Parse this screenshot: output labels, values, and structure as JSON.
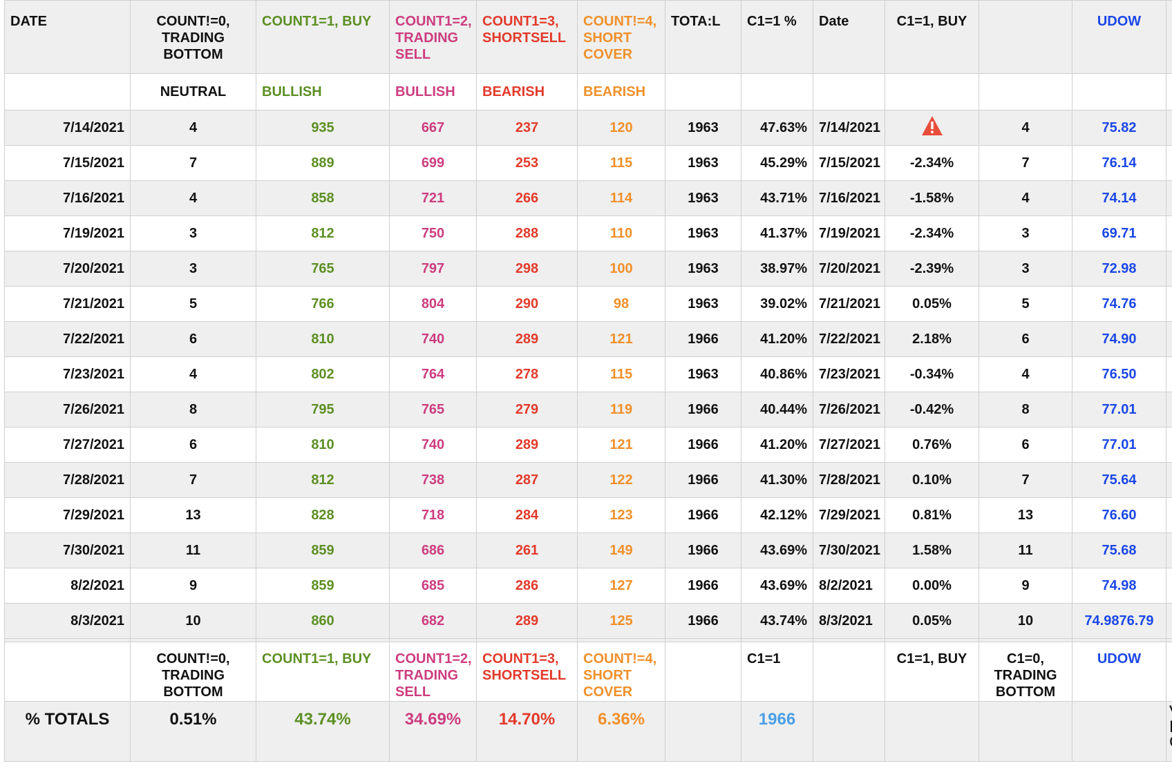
{
  "header": {
    "date": "DATE",
    "c0": "COUNT!=0, TRADING BOTTOM",
    "c1": "COUNT1=1, BUY",
    "c2": "COUNT1=2, TRADING SELL",
    "c3": "COUNT1=3, SHORTSELL",
    "c4": "COUNT!=4, SHORT COVER",
    "total": "TOTA:L",
    "pct": "C1=1 %",
    "date2": "Date",
    "buy": "C1=1, BUY",
    "blank": "",
    "udow": "UDOW"
  },
  "subheader": {
    "c0": "NEUTRAL",
    "c1": "BULLISH",
    "c2": "BULLISH",
    "c3": "BEARISH",
    "c4": "BEARISH"
  },
  "rows": [
    {
      "date": "7/14/2021",
      "c0": "4",
      "c1": "935",
      "c2": "667",
      "c3": "237",
      "c4": "120",
      "total": "1963",
      "pct": "47.63%",
      "date2": "7/14/2021",
      "buy": "",
      "c0b": "4",
      "udow": "75.82"
    },
    {
      "date": "7/15/2021",
      "c0": "7",
      "c1": "889",
      "c2": "699",
      "c3": "253",
      "c4": "115",
      "total": "1963",
      "pct": "45.29%",
      "date2": "7/15/2021",
      "buy": "-2.34%",
      "c0b": "7",
      "udow": "76.14"
    },
    {
      "date": "7/16/2021",
      "c0": "4",
      "c1": "858",
      "c2": "721",
      "c3": "266",
      "c4": "114",
      "total": "1963",
      "pct": "43.71%",
      "date2": "7/16/2021",
      "buy": "-1.58%",
      "c0b": "4",
      "udow": "74.14"
    },
    {
      "date": "7/19/2021",
      "c0": "3",
      "c1": "812",
      "c2": "750",
      "c3": "288",
      "c4": "110",
      "total": "1963",
      "pct": "41.37%",
      "date2": "7/19/2021",
      "buy": "-2.34%",
      "c0b": "3",
      "udow": "69.71"
    },
    {
      "date": "7/20/2021",
      "c0": "3",
      "c1": "765",
      "c2": "797",
      "c3": "298",
      "c4": "100",
      "total": "1963",
      "pct": "38.97%",
      "date2": "7/20/2021",
      "buy": "-2.39%",
      "c0b": "3",
      "udow": "72.98"
    },
    {
      "date": "7/21/2021",
      "c0": "5",
      "c1": "766",
      "c2": "804",
      "c3": "290",
      "c4": "98",
      "total": "1963",
      "pct": "39.02%",
      "date2": "7/21/2021",
      "buy": "0.05%",
      "c0b": "5",
      "udow": "74.76"
    },
    {
      "date": "7/22/2021",
      "c0": "6",
      "c1": "810",
      "c2": "740",
      "c3": "289",
      "c4": "121",
      "total": "1966",
      "pct": "41.20%",
      "date2": "7/22/2021",
      "buy": "2.18%",
      "c0b": "6",
      "udow": "74.90"
    },
    {
      "date": "7/23/2021",
      "c0": "4",
      "c1": "802",
      "c2": "764",
      "c3": "278",
      "c4": "115",
      "total": "1963",
      "pct": "40.86%",
      "date2": "7/23/2021",
      "buy": "-0.34%",
      "c0b": "4",
      "udow": "76.50"
    },
    {
      "date": "7/26/2021",
      "c0": "8",
      "c1": "795",
      "c2": "765",
      "c3": "279",
      "c4": "119",
      "total": "1966",
      "pct": "40.44%",
      "date2": "7/26/2021",
      "buy": "-0.42%",
      "c0b": "8",
      "udow": "77.01"
    },
    {
      "date": "7/27/2021",
      "c0": "6",
      "c1": "810",
      "c2": "740",
      "c3": "289",
      "c4": "121",
      "total": "1966",
      "pct": "41.20%",
      "date2": "7/27/2021",
      "buy": "0.76%",
      "c0b": "6",
      "udow": "77.01"
    },
    {
      "date": "7/28/2021",
      "c0": "7",
      "c1": "812",
      "c2": "738",
      "c3": "287",
      "c4": "122",
      "total": "1966",
      "pct": "41.30%",
      "date2": "7/28/2021",
      "buy": "0.10%",
      "c0b": "7",
      "udow": "75.64"
    },
    {
      "date": "7/29/2021",
      "c0": "13",
      "c1": "828",
      "c2": "718",
      "c3": "284",
      "c4": "123",
      "total": "1966",
      "pct": "42.12%",
      "date2": "7/29/2021",
      "buy": "0.81%",
      "c0b": "13",
      "udow": "76.60"
    },
    {
      "date": "7/30/2021",
      "c0": "11",
      "c1": "859",
      "c2": "686",
      "c3": "261",
      "c4": "149",
      "total": "1966",
      "pct": "43.69%",
      "date2": "7/30/2021",
      "buy": "1.58%",
      "c0b": "11",
      "udow": "75.68"
    },
    {
      "date": "8/2/2021",
      "c0": "9",
      "c1": "859",
      "c2": "685",
      "c3": "286",
      "c4": "127",
      "total": "1966",
      "pct": "43.69%",
      "date2": "8/2/2021",
      "buy": "0.00%",
      "c0b": "9",
      "udow": "74.98"
    },
    {
      "date": "8/3/2021",
      "c0": "10",
      "c1": "860",
      "c2": "682",
      "c3": "289",
      "c4": "125",
      "total": "1966",
      "pct": "43.74%",
      "date2": "8/3/2021",
      "buy": "0.05%",
      "c0b": "10",
      "udow": "74.9876.79"
    }
  ],
  "footer_header": {
    "c0": "COUNT!=0, TRADING BOTTOM",
    "c1": "COUNT1=1, BUY",
    "c2": "COUNT1=2, TRADING SELL",
    "c3": "COUNT1=3, SHORTSELL",
    "c4": "COUNT!=4, SHORT COVER",
    "pct": "C1=1",
    "buy": "C1=1, BUY",
    "c0b": "C1=0, TRADING BOTTOM",
    "udow": "UDOW"
  },
  "totals": {
    "label": "% TOTALS",
    "c0": "0.51%",
    "c1": "43.74%",
    "c2": "34.69%",
    "c3": "14.70%",
    "c4": "6.36%",
    "pct": "1966",
    "cut": "V\nE\nC"
  },
  "colors": {
    "green": "#5c8f23",
    "pink": "#cc3d7f",
    "red": "#e23a2b",
    "orange": "#f0902a",
    "blue": "#1b47e6",
    "warning": "#e94e3d"
  },
  "icons": {
    "warning": "warning-triangle-icon"
  }
}
